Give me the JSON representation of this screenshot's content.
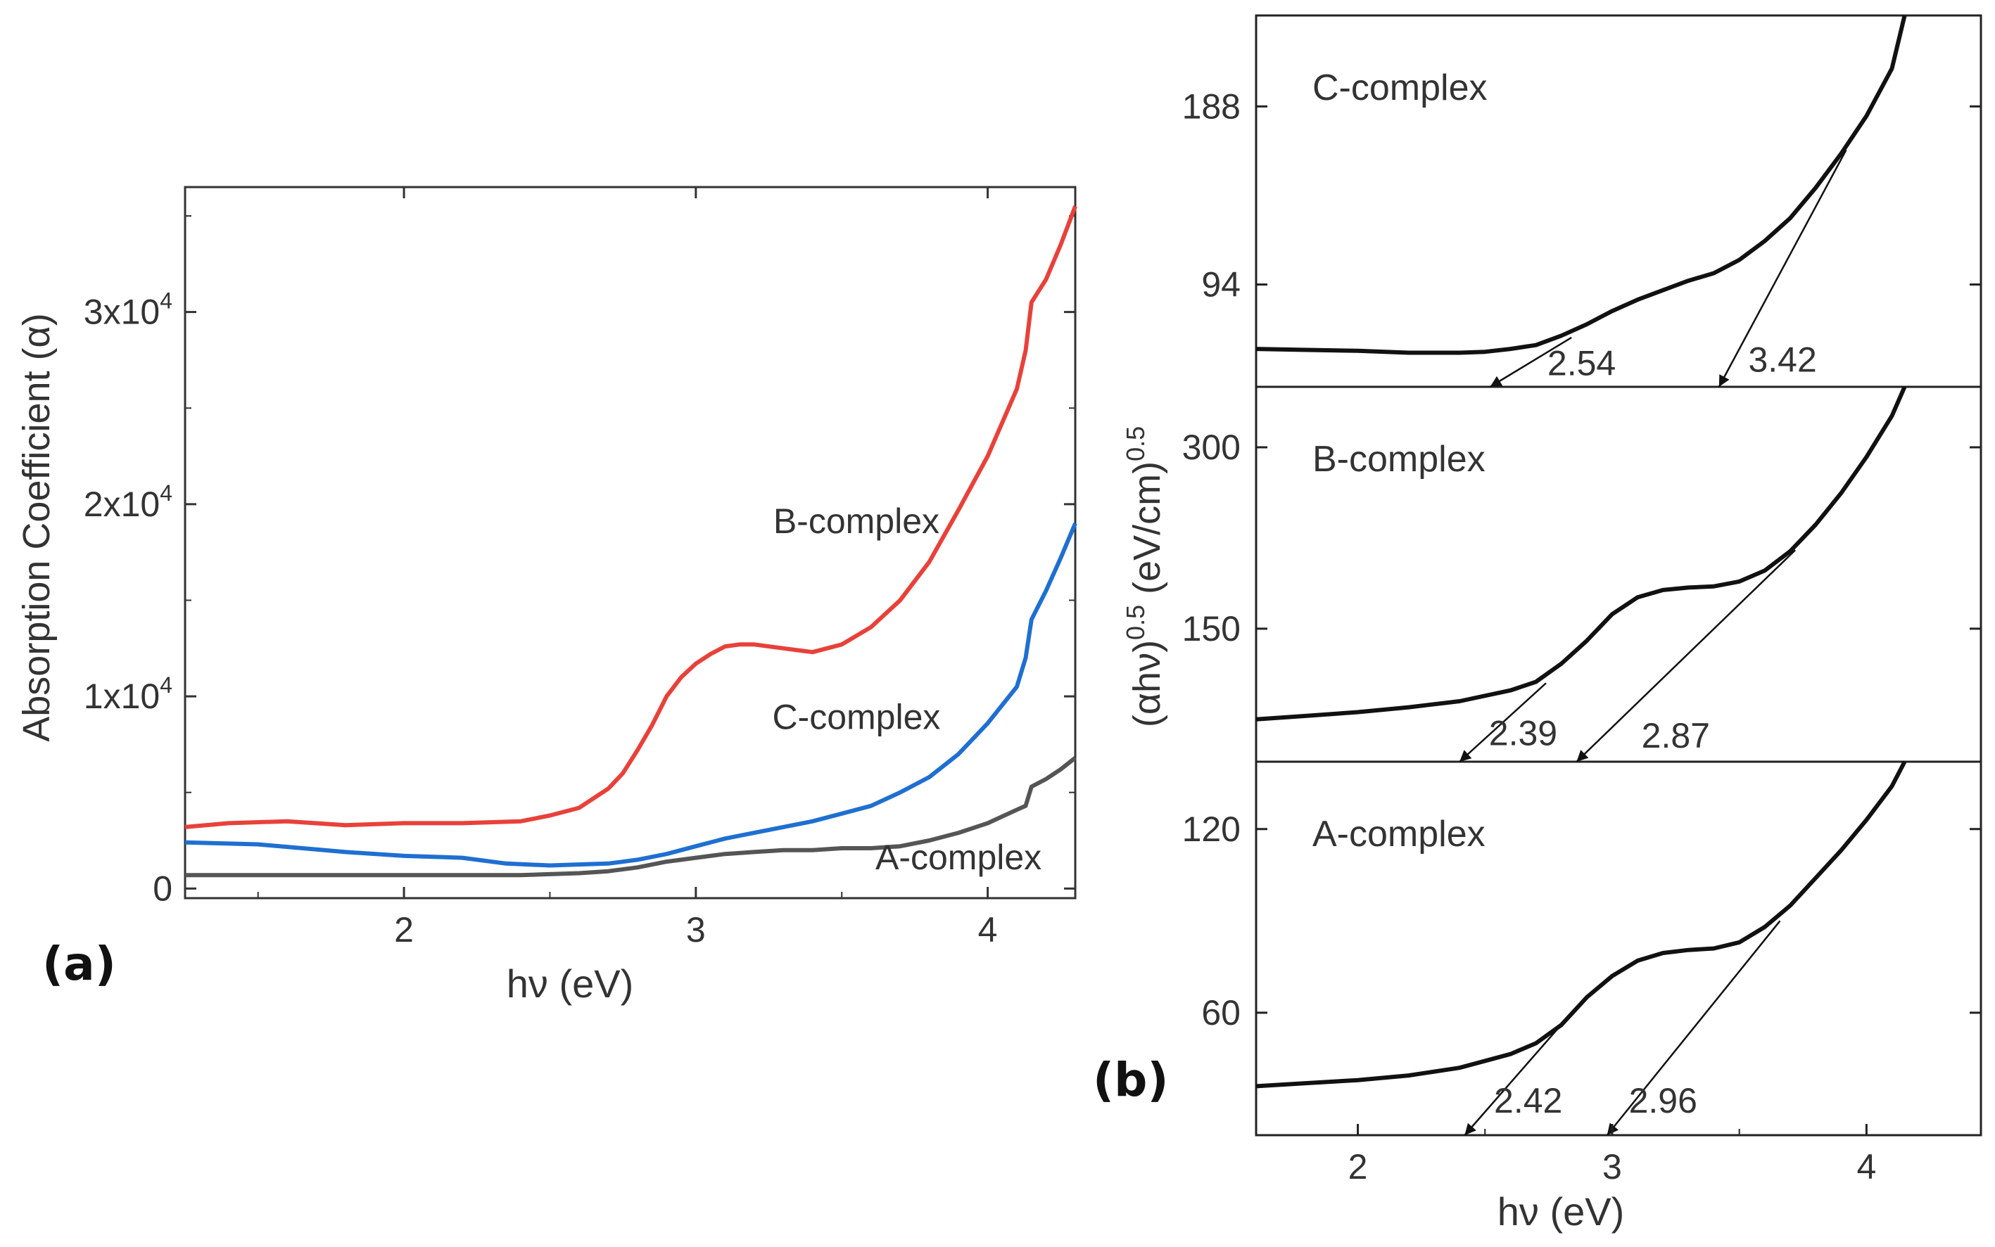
{
  "chart_data": [
    {
      "panel_label": "(a)",
      "type": "line",
      "title": "",
      "xlabel": "hν (eV)",
      "ylabel": "Absorption Coefficient (α)",
      "xlim": [
        1.25,
        4.3
      ],
      "ylim": [
        -500,
        36500
      ],
      "xticks": [
        2,
        3,
        4
      ],
      "yticks": [
        {
          "value": 0,
          "label": "0"
        },
        {
          "value": 10000,
          "label": "1x10",
          "exp": "4"
        },
        {
          "value": 20000,
          "label": "2x10",
          "exp": "4"
        },
        {
          "value": 30000,
          "label": "3x10",
          "exp": "4"
        }
      ],
      "grid": false,
      "legend": "none",
      "series": [
        {
          "name": "B-complex",
          "color": "#e8413a",
          "x": [
            1.25,
            1.4,
            1.6,
            1.8,
            2.0,
            2.2,
            2.4,
            2.5,
            2.6,
            2.7,
            2.75,
            2.8,
            2.85,
            2.9,
            2.95,
            3.0,
            3.05,
            3.1,
            3.15,
            3.2,
            3.3,
            3.4,
            3.5,
            3.6,
            3.7,
            3.8,
            3.9,
            4.0,
            4.1,
            4.13,
            4.15,
            4.2,
            4.25,
            4.3
          ],
          "values": [
            3200,
            3400,
            3500,
            3300,
            3400,
            3400,
            3500,
            3800,
            4200,
            5200,
            6000,
            7200,
            8500,
            10000,
            11000,
            11700,
            12200,
            12600,
            12700,
            12700,
            12500,
            12300,
            12700,
            13600,
            15000,
            17000,
            19700,
            22500,
            26000,
            28000,
            30500,
            31700,
            33500,
            35500
          ]
        },
        {
          "name": "C-complex",
          "color": "#1f6fd1",
          "x": [
            1.25,
            1.5,
            1.8,
            2.0,
            2.2,
            2.35,
            2.5,
            2.7,
            2.8,
            2.9,
            3.0,
            3.1,
            3.2,
            3.3,
            3.4,
            3.5,
            3.6,
            3.7,
            3.8,
            3.9,
            4.0,
            4.1,
            4.13,
            4.15,
            4.2,
            4.25,
            4.3
          ],
          "values": [
            2400,
            2300,
            1900,
            1700,
            1600,
            1300,
            1200,
            1300,
            1500,
            1800,
            2200,
            2600,
            2900,
            3200,
            3500,
            3900,
            4300,
            5000,
            5800,
            7000,
            8600,
            10500,
            12000,
            14000,
            15500,
            17200,
            19000
          ]
        },
        {
          "name": "A-complex",
          "color": "#555555",
          "x": [
            1.25,
            1.6,
            2.0,
            2.4,
            2.6,
            2.7,
            2.8,
            2.9,
            3.0,
            3.1,
            3.2,
            3.3,
            3.4,
            3.5,
            3.6,
            3.7,
            3.8,
            3.9,
            4.0,
            4.1,
            4.13,
            4.15,
            4.2,
            4.25,
            4.3
          ],
          "values": [
            700,
            700,
            700,
            700,
            800,
            900,
            1100,
            1400,
            1600,
            1800,
            1900,
            2000,
            2000,
            2100,
            2100,
            2200,
            2500,
            2900,
            3400,
            4100,
            4300,
            5300,
            5700,
            6200,
            6800
          ]
        }
      ],
      "annotations": [
        {
          "text": "B-complex",
          "x": 3.55,
          "y": 18500
        },
        {
          "text": "C-complex",
          "x": 3.55,
          "y": 8300
        },
        {
          "text": "A-complex",
          "x": 3.9,
          "y": 1000
        }
      ]
    },
    {
      "panel_label": "(b)",
      "type": "line",
      "title": "",
      "xlabel": "hν (eV)",
      "ylabel": "(αhν)^0.5 (eV/cm)^0.5",
      "xlim": [
        1.6,
        4.45
      ],
      "xticks": [
        2,
        3,
        4
      ],
      "subplots": [
        {
          "name": "C-complex",
          "ylim": [
            40,
            236
          ],
          "yticks": [
            94,
            188
          ],
          "curve": {
            "x": [
              1.6,
              1.8,
              2.0,
              2.2,
              2.4,
              2.5,
              2.6,
              2.7,
              2.8,
              2.9,
              3.0,
              3.1,
              3.2,
              3.3,
              3.4,
              3.5,
              3.6,
              3.7,
              3.8,
              3.9,
              4.0,
              4.1,
              4.15
            ],
            "values": [
              60,
              59.5,
              59,
              58,
              58,
              58.5,
              60,
              62,
              67,
              73,
              80,
              86,
              91,
              96,
              100,
              107,
              117,
              129,
              145,
              163,
              183,
              208,
              236
            ]
          },
          "fits": [
            {
              "x": [
                2.52,
                2.84
              ],
              "y": [
                40,
                66
              ]
            },
            {
              "x": [
                3.42,
                3.92
              ],
              "y": [
                40,
                165
              ]
            }
          ],
          "labels": [
            {
              "text": "2.54",
              "x": 2.88,
              "y": 52
            },
            {
              "text": "3.42",
              "x": 3.67,
              "y": 54
            }
          ]
        },
        {
          "name": "B-complex",
          "ylim": [
            40,
            350
          ],
          "yticks": [
            150,
            300
          ],
          "curve": {
            "x": [
              1.6,
              1.8,
              2.0,
              2.2,
              2.4,
              2.6,
              2.7,
              2.8,
              2.9,
              3.0,
              3.1,
              3.2,
              3.3,
              3.4,
              3.5,
              3.6,
              3.7,
              3.8,
              3.9,
              4.0,
              4.1,
              4.15
            ],
            "values": [
              75,
              78,
              81,
              85,
              90,
              99,
              106,
              121,
              140,
              162,
              176,
              182,
              184,
              185,
              189,
              198,
              214,
              236,
              262,
              292,
              326,
              350
            ]
          },
          "fits": [
            {
              "x": [
                2.4,
                2.74
              ],
              "y": [
                40,
                105
              ]
            },
            {
              "x": [
                2.86,
                3.72
              ],
              "y": [
                40,
                215
              ]
            }
          ],
          "labels": [
            {
              "text": "2.39",
              "x": 2.65,
              "y": 63
            },
            {
              "text": "2.87",
              "x": 3.25,
              "y": 61
            }
          ]
        },
        {
          "name": "A-complex",
          "ylim": [
            20,
            142
          ],
          "yticks": [
            60,
            120
          ],
          "curve": {
            "x": [
              1.6,
              1.8,
              2.0,
              2.2,
              2.4,
              2.6,
              2.7,
              2.8,
              2.9,
              3.0,
              3.1,
              3.2,
              3.3,
              3.4,
              3.5,
              3.6,
              3.7,
              3.8,
              3.9,
              4.0,
              4.1,
              4.15
            ],
            "values": [
              36,
              37,
              38,
              39.5,
              42,
              46.5,
              50,
              56,
              65,
              72,
              77,
              79.5,
              80.5,
              81,
              83,
              88,
              95,
              104,
              113,
              123,
              134,
              142
            ]
          },
          "fits": [
            {
              "x": [
                2.42,
                2.82
              ],
              "y": [
                20,
                58
              ]
            },
            {
              "x": [
                2.98,
                3.66
              ],
              "y": [
                20,
                90
              ]
            }
          ],
          "labels": [
            {
              "text": "2.42",
              "x": 2.67,
              "y": 31
            },
            {
              "text": "2.96",
              "x": 3.2,
              "y": 31
            }
          ]
        }
      ]
    }
  ]
}
